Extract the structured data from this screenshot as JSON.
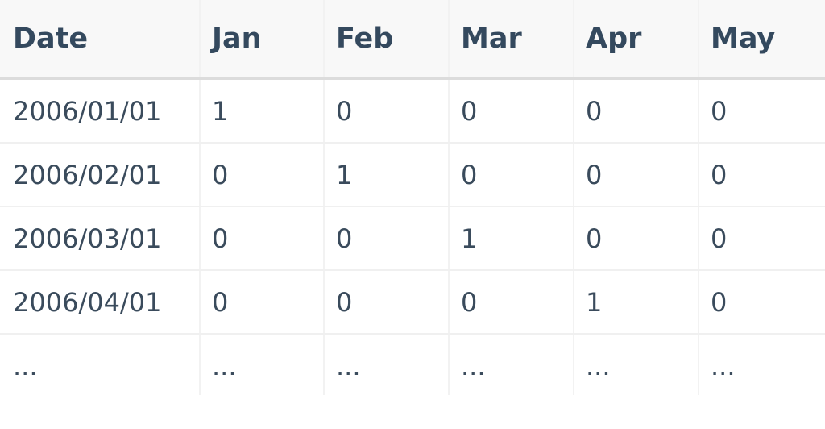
{
  "table": {
    "headers": [
      "Date",
      "Jan",
      "Feb",
      "Mar",
      "Apr",
      "May"
    ],
    "rows": [
      [
        "2006/01/01",
        "1",
        "0",
        "0",
        "0",
        "0"
      ],
      [
        "2006/02/01",
        "0",
        "1",
        "0",
        "0",
        "0"
      ],
      [
        "2006/03/01",
        "0",
        "0",
        "1",
        "0",
        "0"
      ],
      [
        "2006/04/01",
        "0",
        "0",
        "0",
        "1",
        "0"
      ],
      [
        "...",
        "...",
        "...",
        "...",
        "...",
        "..."
      ]
    ]
  }
}
